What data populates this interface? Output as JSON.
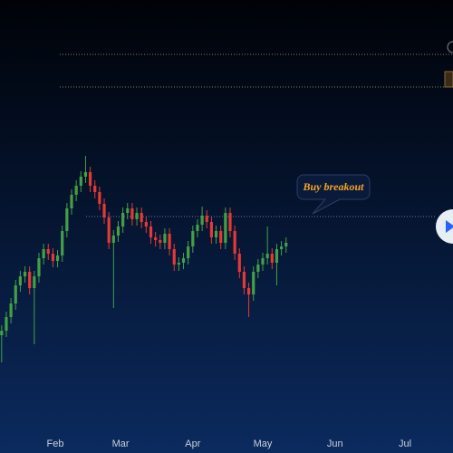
{
  "chart_data": {
    "type": "candlestick",
    "x": [
      9,
      11,
      13,
      15,
      17,
      19,
      21,
      23,
      25,
      27,
      29,
      31,
      33,
      35,
      37,
      39,
      41,
      43,
      45,
      47,
      49,
      51,
      53,
      55,
      57,
      59,
      61,
      63,
      65,
      67,
      69,
      71,
      73,
      75,
      77,
      79,
      81,
      83,
      85,
      87,
      89,
      91,
      93,
      95,
      97,
      99,
      101,
      103,
      105,
      107,
      109,
      111,
      113,
      115,
      117,
      119,
      121,
      123,
      125,
      127,
      129,
      131
    ],
    "open": [
      130,
      135,
      150,
      165,
      185,
      195,
      200,
      182,
      195,
      215,
      225,
      220,
      212,
      218,
      245,
      270,
      285,
      295,
      305,
      310,
      295,
      288,
      275,
      260,
      232,
      240,
      250,
      265,
      270,
      258,
      265,
      255,
      250,
      238,
      235,
      232,
      242,
      225,
      208,
      210,
      215,
      228,
      245,
      252,
      262,
      255,
      238,
      245,
      232,
      265,
      245,
      220,
      200,
      182,
      175,
      200,
      208,
      215,
      220,
      210,
      225,
      228
    ],
    "high": [
      141,
      156,
      171,
      191,
      201,
      206,
      206,
      201,
      221,
      231,
      231,
      226,
      224,
      251,
      276,
      291,
      301,
      311,
      328,
      316,
      301,
      294,
      281,
      266,
      246,
      256,
      271,
      276,
      276,
      271,
      271,
      261,
      256,
      244,
      241,
      248,
      248,
      231,
      216,
      221,
      234,
      251,
      258,
      272,
      268,
      261,
      251,
      251,
      271,
      271,
      251,
      226,
      206,
      188,
      206,
      214,
      221,
      250,
      226,
      231,
      234,
      238
    ],
    "low": [
      100,
      128,
      143,
      158,
      178,
      188,
      175,
      120,
      188,
      208,
      213,
      205,
      205,
      211,
      238,
      263,
      278,
      288,
      298,
      288,
      281,
      268,
      253,
      225,
      160,
      233,
      243,
      258,
      251,
      251,
      248,
      243,
      231,
      228,
      225,
      225,
      218,
      201,
      201,
      203,
      208,
      221,
      238,
      245,
      248,
      231,
      231,
      225,
      225,
      238,
      213,
      193,
      175,
      150,
      168,
      193,
      201,
      208,
      203,
      185,
      218,
      221
    ],
    "close": [
      135,
      150,
      165,
      185,
      195,
      200,
      182,
      195,
      215,
      225,
      220,
      212,
      218,
      245,
      270,
      285,
      295,
      305,
      310,
      295,
      288,
      275,
      260,
      232,
      240,
      250,
      265,
      270,
      258,
      265,
      255,
      250,
      238,
      235,
      232,
      242,
      225,
      208,
      210,
      215,
      228,
      245,
      252,
      262,
      255,
      238,
      245,
      232,
      265,
      245,
      220,
      200,
      182,
      175,
      200,
      208,
      215,
      220,
      210,
      225,
      228,
      232
    ],
    "up_color": "#43a047",
    "down_color": "#e53935",
    "xlim": [
      8.3,
      202.6
    ],
    "ylim": [
      0,
      500
    ],
    "xticks": [
      {
        "value": 32,
        "label": "Feb"
      },
      {
        "value": 60,
        "label": "Mar"
      },
      {
        "value": 91,
        "label": "Apr"
      },
      {
        "value": 121,
        "label": "May"
      },
      {
        "value": 152,
        "label": "Jun"
      },
      {
        "value": 182,
        "label": "Jul"
      }
    ],
    "levels": [
      440,
      404,
      261
    ],
    "annotation": "Buy breakout"
  }
}
